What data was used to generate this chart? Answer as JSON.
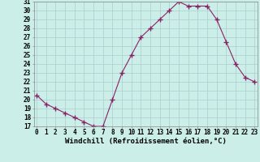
{
  "hours": [
    0,
    1,
    2,
    3,
    4,
    5,
    6,
    7,
    8,
    9,
    10,
    11,
    12,
    13,
    14,
    15,
    16,
    17,
    18,
    19,
    20,
    21,
    22,
    23
  ],
  "values": [
    20.5,
    19.5,
    19.0,
    18.5,
    18.0,
    17.5,
    17.0,
    17.0,
    20.0,
    23.0,
    25.0,
    27.0,
    28.0,
    29.0,
    30.0,
    31.0,
    30.5,
    30.5,
    30.5,
    29.0,
    26.5,
    24.0,
    22.5,
    22.0
  ],
  "line_color": "#882266",
  "marker": "+",
  "marker_size": 4,
  "marker_linewidth": 1.0,
  "line_width": 0.8,
  "bg_color": "#cceee8",
  "grid_color": "#aacccc",
  "xlabel": "Windchill (Refroidissement éolien,°C)",
  "xlabel_fontsize": 6.5,
  "tick_fontsize": 5.5,
  "ylim_min": 17,
  "ylim_max": 31,
  "xlim_min": 0,
  "xlim_max": 23
}
